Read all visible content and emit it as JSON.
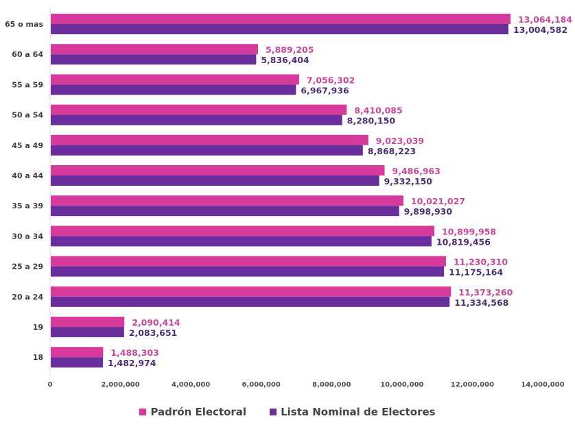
{
  "chart_data": {
    "type": "bar",
    "orientation": "horizontal",
    "title": "",
    "xlabel": "",
    "ylabel": "",
    "categories": [
      "65 o mas",
      "60 a 64",
      "55 a 59",
      "50 a 54",
      "45 a 49",
      "40 a 44",
      "35 a 39",
      "30 a 34",
      "25 a 29",
      "20 a 24",
      "19",
      "18"
    ],
    "series": [
      {
        "name": "Padrón Electoral",
        "color": "#d63a9a",
        "label_color": "#c8489c",
        "values": [
          13064184,
          5889205,
          7056302,
          8410085,
          9023039,
          9486963,
          10021027,
          10899958,
          11230310,
          11373260,
          2090414,
          1488303
        ],
        "labels": [
          "13,064,184",
          "5,889,205",
          "7,056,302",
          "8,410,085",
          "9,023,039",
          "9,486,963",
          "10,021,027",
          "10,899,958",
          "11,230,310",
          "11,373,260",
          "2,090,414",
          "1,488,303"
        ]
      },
      {
        "name": "Lista Nominal de Electores",
        "color": "#6a2d9c",
        "label_color": "#4a3070",
        "values": [
          13004582,
          5836404,
          6967936,
          8280150,
          8868223,
          9332150,
          9898930,
          10819456,
          11175164,
          11334568,
          2083651,
          1482974
        ],
        "labels": [
          "13,004,582",
          "5,836,404",
          "6,967,936",
          "8,280,150",
          "8,868,223",
          "9,332,150",
          "9,898,930",
          "10,819,456",
          "11,175,164",
          "11,334,568",
          "2,083,651",
          "1,482,974"
        ]
      }
    ],
    "xlim": [
      0,
      14000000
    ],
    "xticks": [
      0,
      2000000,
      4000000,
      6000000,
      8000000,
      10000000,
      12000000,
      14000000
    ],
    "xtick_labels": [
      "0",
      "2,000,000",
      "4,000,000",
      "6,000,000",
      "8,000,000",
      "10,000,000",
      "12,000,000",
      "14,000,000"
    ],
    "grid": false,
    "legend_position": "bottom-center"
  }
}
